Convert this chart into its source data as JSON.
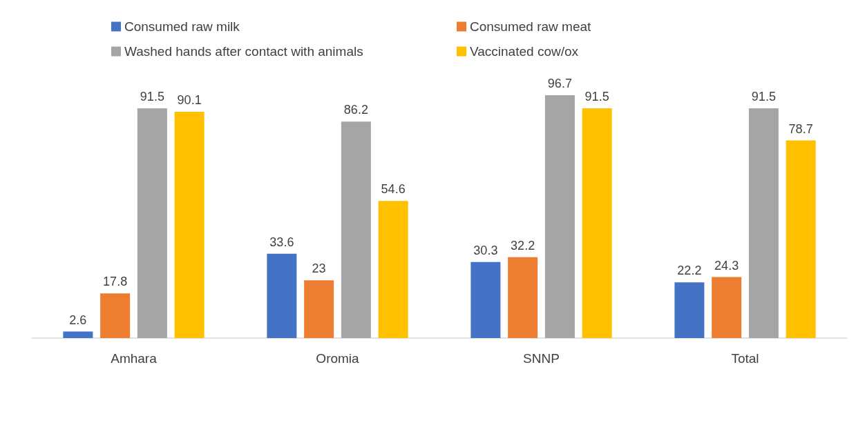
{
  "chart_data": {
    "type": "bar",
    "categories": [
      "Amhara",
      "Oromia",
      "SNNP",
      "Total"
    ],
    "series": [
      {
        "name": "Consumed raw milk",
        "color": "#4472c4",
        "values": [
          2.6,
          33.6,
          30.3,
          22.2
        ]
      },
      {
        "name": "Consumed raw meat",
        "color": "#ed7d31",
        "values": [
          17.8,
          23,
          32.2,
          24.3
        ]
      },
      {
        "name": "Washed hands after contact with animals",
        "color": "#a5a5a5",
        "values": [
          91.5,
          86.2,
          96.7,
          91.5
        ]
      },
      {
        "name": "Vaccinated cow/ox",
        "color": "#ffc000",
        "values": [
          90.1,
          54.6,
          91.5,
          78.7
        ]
      }
    ],
    "data_labels": true,
    "grid": false,
    "legend": "top"
  }
}
